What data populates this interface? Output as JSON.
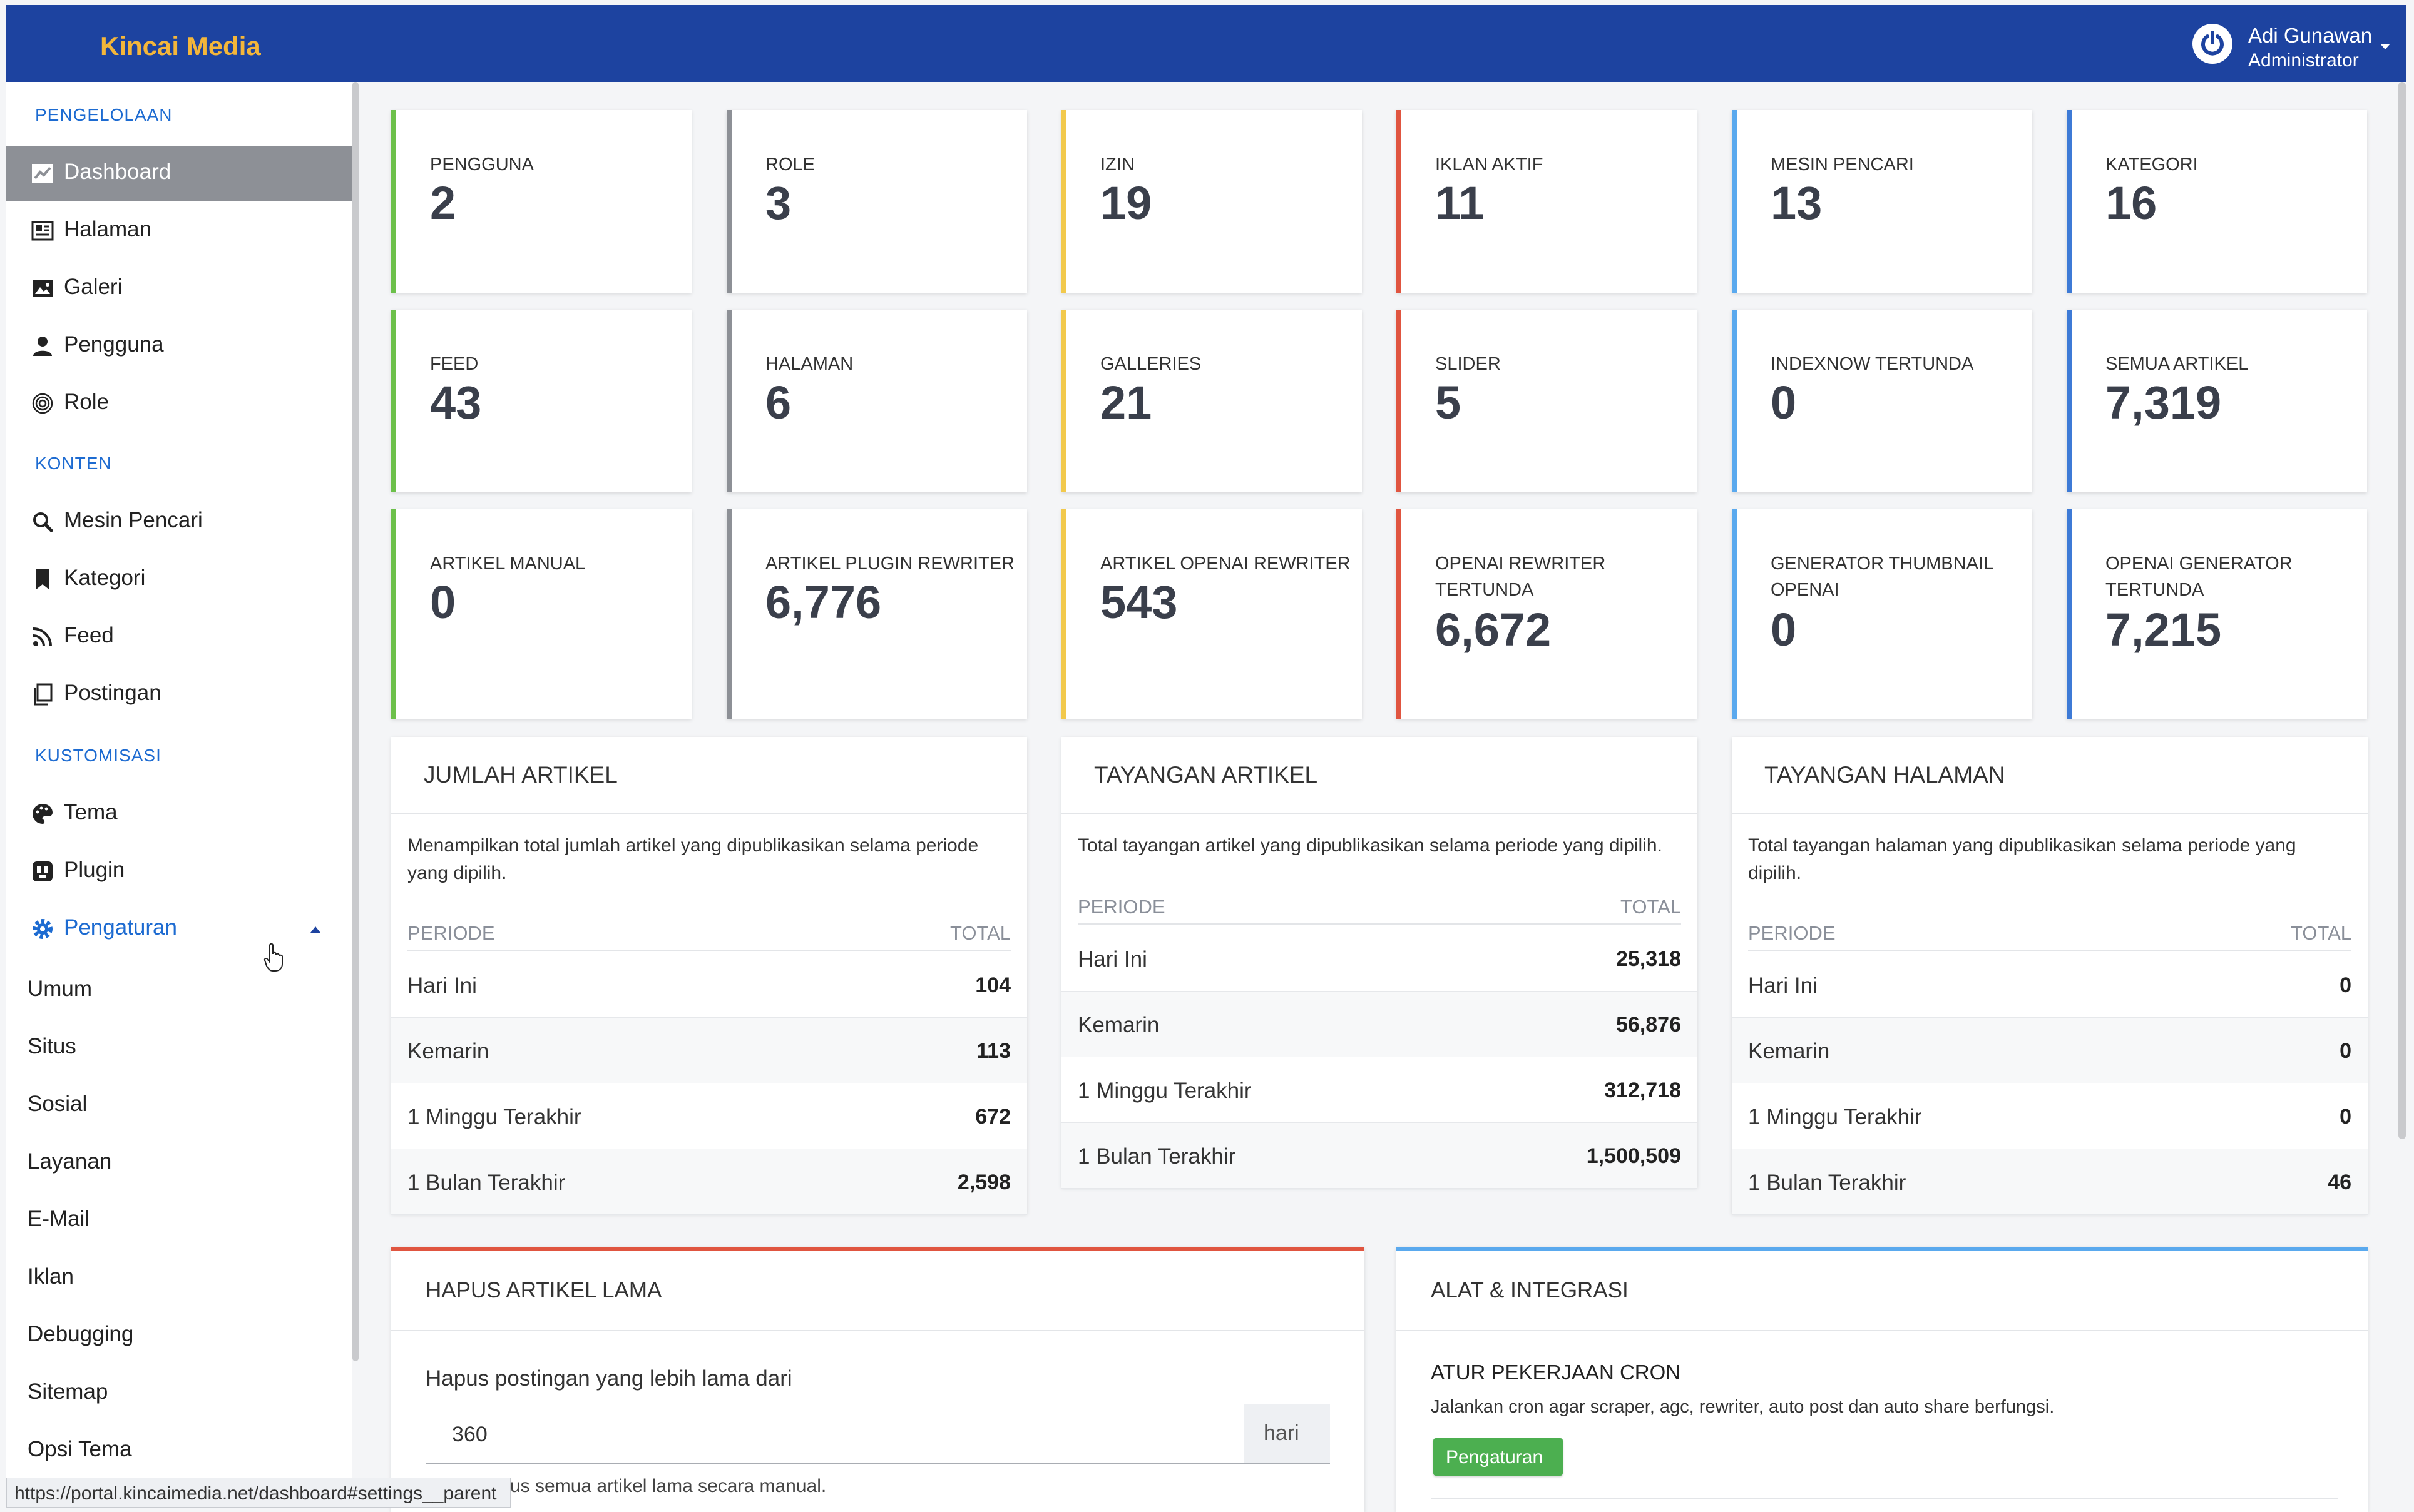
{
  "topbar": {
    "brand": "Kincai Media",
    "user_name": "Adi Gunawan",
    "user_role": "Administrator",
    "colors": {
      "bar": "#1d43a0",
      "brand": "#f4b63a"
    }
  },
  "sidebar": {
    "section_management": "PENGELOLAAN",
    "section_content": "KONTEN",
    "section_custom": "KUSTOMISASI",
    "items": [
      {
        "label": "Dashboard",
        "icon": "chart-line-icon"
      },
      {
        "label": "Halaman",
        "icon": "newspaper-icon"
      },
      {
        "label": "Galeri",
        "icon": "image-icon"
      },
      {
        "label": "Pengguna",
        "icon": "user-icon"
      },
      {
        "label": "Role",
        "icon": "fingerprint-icon"
      },
      {
        "label": "Mesin Pencari",
        "icon": "search-icon"
      },
      {
        "label": "Kategori",
        "icon": "bookmark-icon"
      },
      {
        "label": "Feed",
        "icon": "rss-icon"
      },
      {
        "label": "Postingan",
        "icon": "copy-icon"
      },
      {
        "label": "Tema",
        "icon": "palette-icon"
      },
      {
        "label": "Plugin",
        "icon": "plug-icon"
      },
      {
        "label": "Pengaturan",
        "icon": "gear-icon"
      }
    ],
    "settings_subitems": [
      "Umum",
      "Situs",
      "Sosial",
      "Layanan",
      "E-Mail",
      "Iklan",
      "Debugging",
      "Sitemap",
      "Opsi Tema"
    ],
    "status_url": "https://portal.kincaimedia.net/dashboard#settings__parent"
  },
  "stats": [
    {
      "label": "PENGGUNA",
      "value": "2",
      "color": "#6cc04a"
    },
    {
      "label": "ROLE",
      "value": "3",
      "color": "#8d9096"
    },
    {
      "label": "IZIN",
      "value": "19",
      "color": "#f2c94c"
    },
    {
      "label": "IKLAN AKTIF",
      "value": "11",
      "color": "#e05540"
    },
    {
      "label": "MESIN PENCARI",
      "value": "13",
      "color": "#5aa9ee"
    },
    {
      "label": "KATEGORI",
      "value": "16",
      "color": "#3d7ad6"
    },
    {
      "label": "FEED",
      "value": "43",
      "color": "#6cc04a"
    },
    {
      "label": "HALAMAN",
      "value": "6",
      "color": "#8d9096"
    },
    {
      "label": "GALLERIES",
      "value": "21",
      "color": "#f2c94c"
    },
    {
      "label": "SLIDER",
      "value": "5",
      "color": "#e05540"
    },
    {
      "label": "INDEXNOW TERTUNDA",
      "value": "0",
      "color": "#5aa9ee"
    },
    {
      "label": "SEMUA ARTIKEL",
      "value": "7,319",
      "color": "#3d7ad6"
    },
    {
      "label": "ARTIKEL MANUAL",
      "value": "0",
      "color": "#6cc04a"
    },
    {
      "label": "ARTIKEL PLUGIN REWRITER",
      "value": "6,776",
      "color": "#8d9096"
    },
    {
      "label": "ARTIKEL OPENAI REWRITER",
      "value": "543",
      "color": "#f2c94c"
    },
    {
      "label": "OPENAI REWRITER TERTUNDA",
      "value": "6,672",
      "color": "#e05540"
    },
    {
      "label": "GENERATOR THUMBNAIL OPENAI",
      "value": "0",
      "color": "#5aa9ee"
    },
    {
      "label": "OPENAI GENERATOR TERTUNDA",
      "value": "7,215",
      "color": "#3d7ad6"
    }
  ],
  "panels": [
    {
      "title": "JUMLAH ARTIKEL",
      "desc": "Menampilkan total jumlah artikel yang dipublikasikan selama periode yang dipilih.",
      "col_period": "PERIODE",
      "col_total": "TOTAL",
      "rows": [
        {
          "period": "Hari Ini",
          "total": "104"
        },
        {
          "period": "Kemarin",
          "total": "113"
        },
        {
          "period": "1 Minggu Terakhir",
          "total": "672"
        },
        {
          "period": "1 Bulan Terakhir",
          "total": "2,598"
        }
      ]
    },
    {
      "title": "TAYANGAN ARTIKEL",
      "desc": "Total tayangan artikel yang dipublikasikan selama periode yang dipilih.",
      "col_period": "PERIODE",
      "col_total": "TOTAL",
      "rows": [
        {
          "period": "Hari Ini",
          "total": "25,318"
        },
        {
          "period": "Kemarin",
          "total": "56,876"
        },
        {
          "period": "1 Minggu Terakhir",
          "total": "312,718"
        },
        {
          "period": "1 Bulan Terakhir",
          "total": "1,500,509"
        }
      ]
    },
    {
      "title": "TAYANGAN HALAMAN",
      "desc": "Total tayangan halaman yang dipublikasikan selama periode yang dipilih.",
      "col_period": "PERIODE",
      "col_total": "TOTAL",
      "rows": [
        {
          "period": "Hari Ini",
          "total": "0"
        },
        {
          "period": "Kemarin",
          "total": "0"
        },
        {
          "period": "1 Minggu Terakhir",
          "total": "0"
        },
        {
          "period": "1 Bulan Terakhir",
          "total": "46"
        }
      ]
    }
  ],
  "delete_old": {
    "title": "HAPUS ARTIKEL LAMA",
    "label": "Hapus postingan yang lebih lama dari",
    "value": "360",
    "unit": "hari",
    "hint": "us semua artikel lama secara manual.",
    "accent": "#e05540"
  },
  "tools": {
    "title": "ALAT & INTEGRASI",
    "cron_title": "ATUR PEKERJAAN CRON",
    "cron_desc": "Jalankan cron agar scraper, agc, rewriter, auto post dan auto share berfungsi.",
    "cron_button": "Pengaturan",
    "accent": "#5aa9ee"
  }
}
